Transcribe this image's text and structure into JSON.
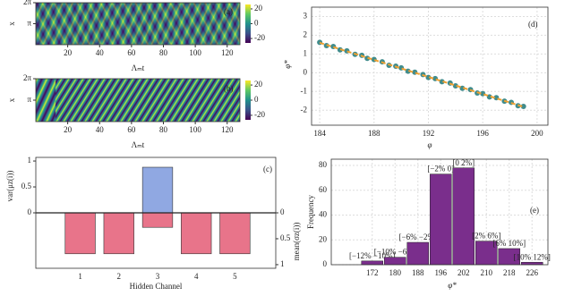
{
  "chart_data": [
    {
      "type": "heatmap",
      "panel_label": "(a)",
      "xlabel": "Λₘt",
      "ylabel": "x",
      "xlim": [
        0,
        128
      ],
      "xticks": [
        20,
        40,
        60,
        80,
        100,
        120
      ],
      "ylim": [
        0,
        6.2832
      ],
      "yticks": [
        {
          "value": 3.1416,
          "label": "π"
        },
        {
          "value": 6.2832,
          "label": "2π"
        }
      ],
      "colormap": "viridis",
      "zlim": [
        -26,
        26
      ],
      "colorbar_ticks": [
        20,
        0,
        -20
      ]
    },
    {
      "type": "heatmap",
      "panel_label": "(b)",
      "xlabel": "Λₘt",
      "ylabel": "x",
      "xlim": [
        0,
        128
      ],
      "xticks": [
        20,
        40,
        60,
        80,
        100,
        120
      ],
      "ylim": [
        0,
        6.2832
      ],
      "yticks": [
        {
          "value": 3.1416,
          "label": "π"
        },
        {
          "value": 6.2832,
          "label": "2π"
        }
      ],
      "colormap": "viridis",
      "zlim": [
        -26,
        26
      ],
      "colorbar_ticks": [
        20,
        0,
        -20
      ]
    },
    {
      "type": "diverging-bar",
      "panel_label": "(c)",
      "xlabel": "Hidden Channel",
      "ylabel": "var(μz(i))",
      "y2label": "mean(σz(i))",
      "categories": [
        "1",
        "2",
        "3",
        "4",
        "5"
      ],
      "ylim": [
        -1.07,
        1.07
      ],
      "yticks": [
        0,
        0.5,
        1
      ],
      "y2lim": [
        1.07,
        -1.07
      ],
      "y2ticks": [
        0,
        0.5,
        1
      ],
      "series": [
        {
          "color": "#90a8e2",
          "values": [
            0,
            0,
            0.88,
            0,
            0
          ]
        },
        {
          "color": "#e8748a",
          "axis": "y2",
          "values": [
            0.79,
            0.79,
            0.28,
            0.79,
            0.79
          ]
        }
      ]
    },
    {
      "type": "scatter",
      "panel_label": "(d)",
      "xlabel": "φ",
      "ylabel": "φ*",
      "xlim": [
        183.4,
        200.8
      ],
      "xticks": [
        184,
        188,
        192,
        196,
        200
      ],
      "ylim": [
        -2.8,
        3.5
      ],
      "yticks": [
        -2,
        -1,
        0,
        1,
        2,
        3
      ],
      "grid": true,
      "series": [
        {
          "type": "scatter",
          "color": "#2b7f7f",
          "x": [
            184.0,
            184.5,
            185.0,
            185.5,
            186.0,
            186.6,
            187.1,
            187.5,
            188.0,
            188.6,
            189.1,
            189.6,
            190.0,
            190.5,
            191.0,
            191.6,
            192.0,
            192.5,
            193.0,
            193.6,
            194.0,
            194.5,
            195.1,
            195.6,
            196.0,
            196.5,
            197.0,
            197.6,
            198.1,
            198.6,
            199.0
          ],
          "y": [
            1.62,
            1.45,
            1.4,
            1.22,
            1.17,
            0.98,
            0.93,
            0.77,
            0.71,
            0.58,
            0.4,
            0.35,
            0.26,
            0.08,
            0.03,
            -0.1,
            -0.25,
            -0.31,
            -0.48,
            -0.55,
            -0.7,
            -0.83,
            -0.9,
            -1.08,
            -1.12,
            -1.29,
            -1.33,
            -1.52,
            -1.58,
            -1.76,
            -1.8
          ]
        },
        {
          "type": "line",
          "color": "#f0a030",
          "x": [
            184,
            199
          ],
          "y": [
            1.6,
            -1.82
          ]
        }
      ]
    },
    {
      "type": "bar",
      "panel_label": "(e)",
      "xlabel": "φ*",
      "ylabel": "Frequency",
      "categories": [
        "172",
        "180",
        "188",
        "196",
        "202",
        "210",
        "218",
        "226"
      ],
      "values": [
        3,
        6,
        18,
        73,
        78,
        19,
        13,
        2
      ],
      "annotations": [
        "[−12% −10%]",
        "[−10% −6%]",
        "[−6% −2%]",
        "[−2% 0]",
        "[0 2%]",
        "[2% 6%]",
        "[6% 10%]",
        "[10% 12%]"
      ],
      "color": "#7a2e8c",
      "ylim": [
        0,
        85
      ],
      "yticks": [
        0,
        20,
        40,
        60,
        80
      ],
      "grid": true
    }
  ]
}
